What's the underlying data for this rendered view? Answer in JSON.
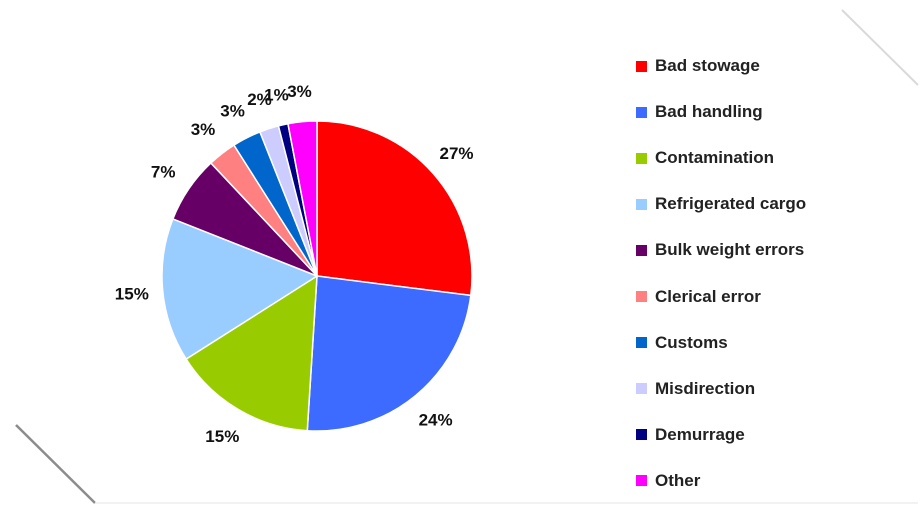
{
  "chart_data": {
    "type": "pie",
    "title": "",
    "legend_position": "right",
    "slices": [
      {
        "label": "Bad stowage",
        "value": 27,
        "display": "27%",
        "color": "#ff0000"
      },
      {
        "label": "Bad handling",
        "value": 24,
        "display": "24%",
        "color": "#3d6bff"
      },
      {
        "label": "Contamination",
        "value": 15,
        "display": "15%",
        "color": "#99cc00"
      },
      {
        "label": "Refrigerated cargo",
        "value": 15,
        "display": "15%",
        "color": "#99ccff"
      },
      {
        "label": "Bulk weight errors",
        "value": 7,
        "display": "7%",
        "color": "#660066"
      },
      {
        "label": "Clerical error",
        "value": 3,
        "display": "3%",
        "color": "#ff8080"
      },
      {
        "label": "Customs",
        "value": 3,
        "display": "3%",
        "color": "#0066cc"
      },
      {
        "label": "Misdirection",
        "value": 2,
        "display": "2%",
        "color": "#ccccff"
      },
      {
        "label": "Demurrage",
        "value": 1,
        "display": "1%",
        "color": "#000080"
      },
      {
        "label": "Other",
        "value": 3,
        "display": "3%",
        "color": "#ff00ff"
      }
    ]
  }
}
